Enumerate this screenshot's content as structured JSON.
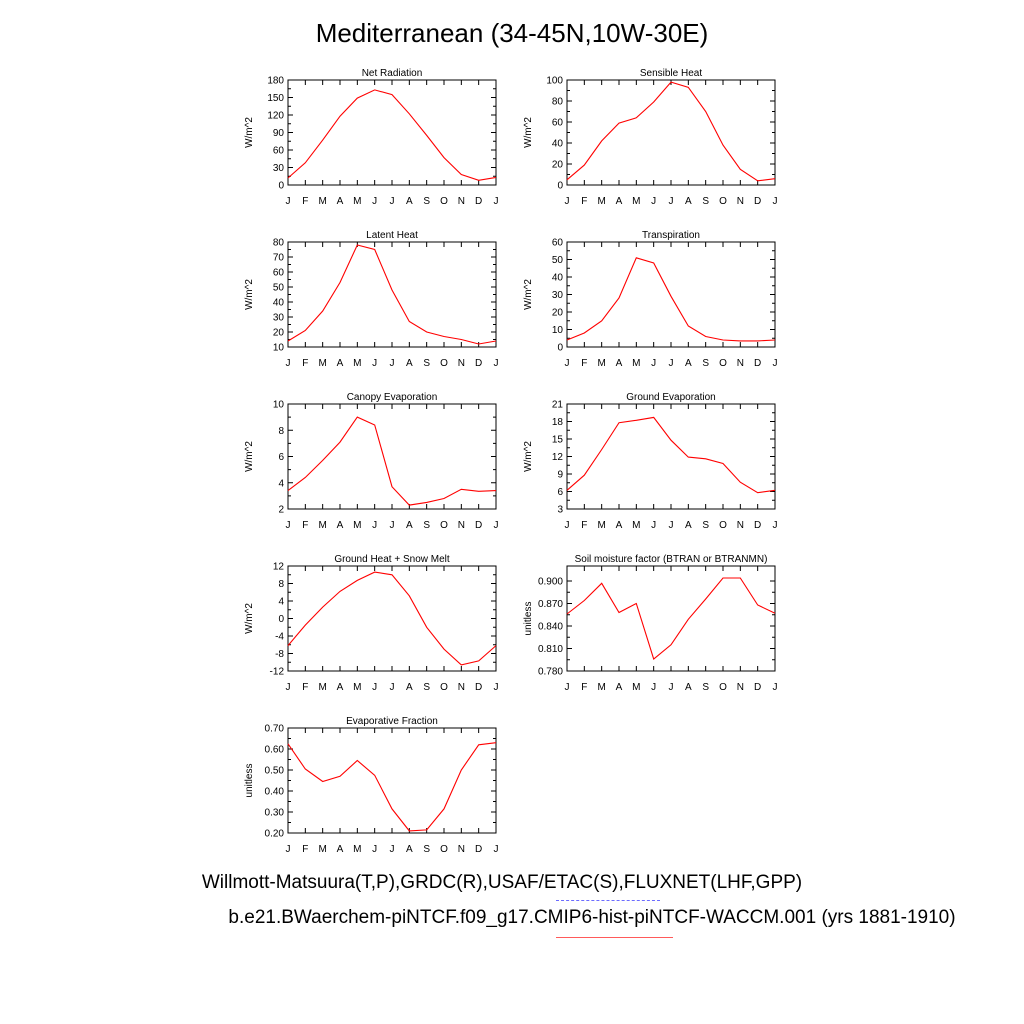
{
  "title": "Mediterranean (34-45N,10W-30E)",
  "month_labels": [
    "J",
    "F",
    "M",
    "A",
    "M",
    "J",
    "J",
    "A",
    "S",
    "O",
    "N",
    "D",
    "J"
  ],
  "line_color": "#ff0000",
  "legend": {
    "obs_text": "Willmott-Matsuura(T,P),GRDC(R),USAF/ETAC(S),FLUXNET(LHF,GPP)",
    "obs_line_color": "#6b6bff",
    "case_text": "b.e21.BWaerchem-piNTCF.f09_g17.CMIP6-hist-piNTCF-WACCM.001 (yrs 1881-1910)",
    "case_line_color": "#ff5a5a"
  },
  "chart_data": [
    {
      "type": "line",
      "title": "Net Radiation",
      "ylabel": "W/m^2",
      "ylim": [
        0,
        180
      ],
      "yticks": [
        "0",
        "30",
        "60",
        "90",
        "120",
        "150",
        "180"
      ],
      "values": [
        12,
        38,
        77,
        118,
        149,
        163,
        155,
        122,
        85,
        47,
        18,
        8,
        13
      ]
    },
    {
      "type": "line",
      "title": "Sensible Heat",
      "ylabel": "W/m^2",
      "ylim": [
        0,
        100
      ],
      "yticks": [
        "0",
        "20",
        "40",
        "60",
        "80",
        "100"
      ],
      "values": [
        5,
        19,
        42,
        59,
        64,
        79,
        98,
        93,
        70,
        38,
        15,
        4,
        6
      ]
    },
    {
      "type": "line",
      "title": "Latent Heat",
      "ylabel": "W/m^2",
      "ylim": [
        10,
        80
      ],
      "yticks": [
        "10",
        "20",
        "30",
        "40",
        "50",
        "60",
        "70",
        "80"
      ],
      "values": [
        14,
        21,
        34,
        53,
        78,
        75,
        48,
        27,
        20,
        17,
        15,
        12,
        14
      ]
    },
    {
      "type": "line",
      "title": "Transpiration",
      "ylabel": "W/m^2",
      "ylim": [
        0,
        60
      ],
      "yticks": [
        "0",
        "10",
        "20",
        "30",
        "40",
        "50",
        "60"
      ],
      "values": [
        4,
        8,
        15,
        28,
        51,
        48,
        29,
        12,
        6,
        4,
        3.5,
        3.5,
        4
      ]
    },
    {
      "type": "line",
      "title": "Canopy Evaporation",
      "ylabel": "W/m^2",
      "ylim": [
        2,
        10
      ],
      "yticks": [
        "2",
        "4",
        "6",
        "8",
        "10"
      ],
      "values": [
        3.4,
        4.4,
        5.7,
        7.1,
        9.0,
        8.4,
        3.7,
        2.3,
        2.5,
        2.8,
        3.5,
        3.35,
        3.4
      ]
    },
    {
      "type": "line",
      "title": "Ground Evaporation",
      "ylabel": "W/m^2",
      "ylim": [
        3,
        21
      ],
      "yticks": [
        "3",
        "6",
        "9",
        "12",
        "15",
        "18",
        "21"
      ],
      "values": [
        6.2,
        8.8,
        13.2,
        17.8,
        18.2,
        18.7,
        14.8,
        11.9,
        11.6,
        10.8,
        7.6,
        5.8,
        6.2
      ]
    },
    {
      "type": "line",
      "title": "Ground Heat + Snow Melt",
      "ylabel": "W/m^2",
      "ylim": [
        -12,
        12
      ],
      "yticks": [
        "-12",
        "-8",
        "-4",
        "0",
        "4",
        "8",
        "12"
      ],
      "values": [
        -6.2,
        -1.5,
        2.6,
        6.2,
        8.7,
        10.6,
        10.0,
        5.2,
        -2.0,
        -7.0,
        -10.6,
        -9.7,
        -6.2
      ]
    },
    {
      "type": "line",
      "title": "Soil moisture factor (BTRAN or BTRANMN)",
      "ylabel": "unitless",
      "ylim": [
        0.78,
        0.92
      ],
      "yticks": [
        "0.780",
        "0.810",
        "0.840",
        "0.870",
        "0.900"
      ],
      "values": [
        0.856,
        0.874,
        0.897,
        0.858,
        0.87,
        0.796,
        0.815,
        0.849,
        0.876,
        0.904,
        0.904,
        0.868,
        0.857
      ]
    },
    {
      "type": "line",
      "title": "Evaporative Fraction",
      "ylabel": "unitless",
      "ylim": [
        0.2,
        0.7
      ],
      "yticks": [
        "0.20",
        "0.30",
        "0.40",
        "0.50",
        "0.60",
        "0.70"
      ],
      "values": [
        0.625,
        0.505,
        0.445,
        0.47,
        0.545,
        0.475,
        0.315,
        0.21,
        0.215,
        0.315,
        0.5,
        0.62,
        0.63
      ]
    }
  ]
}
